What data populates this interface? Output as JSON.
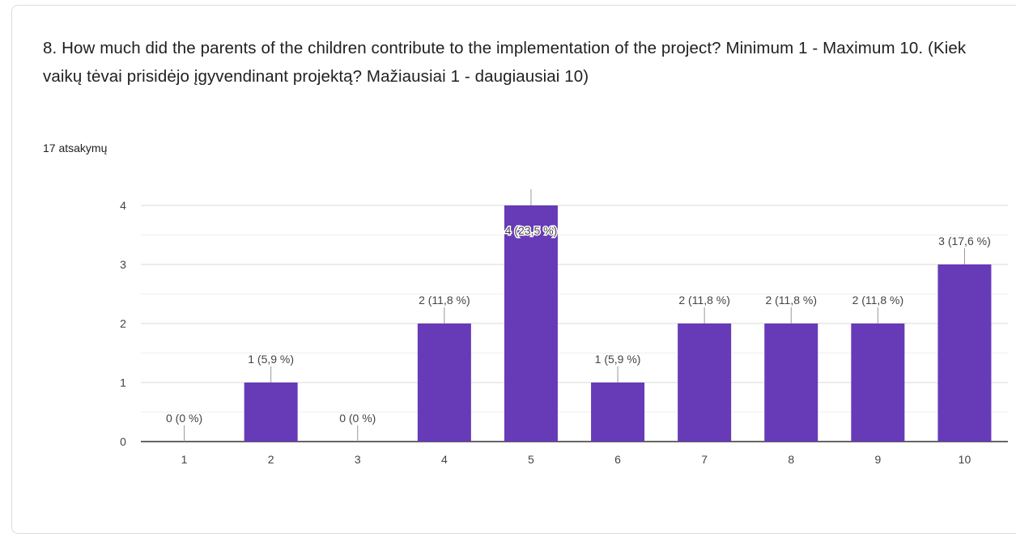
{
  "question": {
    "title": "8. How much did the parents of the children contribute to the implementation of the project? Minimum 1 - Maximum 10. (Kiek vaikų tėvai prisidėjo įgyvendinant projektą? Mažiausiai 1 - daugiausiai 10)",
    "response_count": "17 atsakymų"
  },
  "colors": {
    "bar": "#673ab7",
    "grid": "#e8e8e8",
    "axis": "#333333",
    "label": "#444444"
  },
  "chart_data": {
    "type": "bar",
    "categories": [
      "1",
      "2",
      "3",
      "4",
      "5",
      "6",
      "7",
      "8",
      "9",
      "10"
    ],
    "values": [
      0,
      1,
      0,
      2,
      4,
      1,
      2,
      2,
      2,
      3
    ],
    "data_labels": [
      "0 (0 %)",
      "1 (5,9 %)",
      "0 (0 %)",
      "2 (11,8 %)",
      "4 (23,5 %)",
      "1 (5,9 %)",
      "2 (11,8 %)",
      "2 (11,8 %)",
      "2 (11,8 %)",
      "3 (17,6 %)"
    ],
    "yticks": [
      "0",
      "1",
      "2",
      "3",
      "4"
    ],
    "ylim": [
      0,
      4
    ],
    "grid": true,
    "legend": "none"
  }
}
